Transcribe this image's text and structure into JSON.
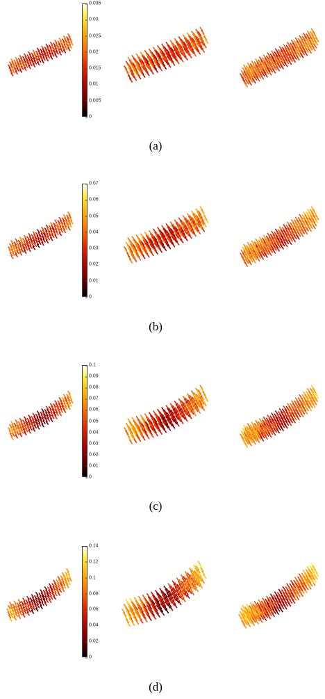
{
  "panels": [
    {
      "caption": "(a)",
      "cbar_max": 0.035,
      "ticks": [
        "0",
        "0.005",
        "0.01",
        "0.015",
        "0.02",
        "0.025",
        "0.03",
        "0.035"
      ]
    },
    {
      "caption": "(b)",
      "cbar_max": 0.07,
      "ticks": [
        "0",
        "0.01",
        "0.02",
        "0.03",
        "0.04",
        "0.05",
        "0.06",
        "0.07"
      ]
    },
    {
      "caption": "(c)",
      "cbar_max": 0.1,
      "ticks": [
        "0",
        "0.01",
        "0.02",
        "0.03",
        "0.04",
        "0.05",
        "0.06",
        "0.07",
        "0.08",
        "0.09",
        "0.1"
      ]
    },
    {
      "caption": "(d)",
      "cbar_max": 0.14,
      "ticks": [
        "0",
        "0.02",
        "0.04",
        "0.06",
        "0.08",
        "0.1",
        "0.12",
        "0.14"
      ]
    }
  ],
  "colormap": [
    "#000000",
    "#5a0000",
    "#b00000",
    "#e42a00",
    "#ff6e00",
    "#ffb000",
    "#ffee40",
    "#ffffff"
  ]
}
